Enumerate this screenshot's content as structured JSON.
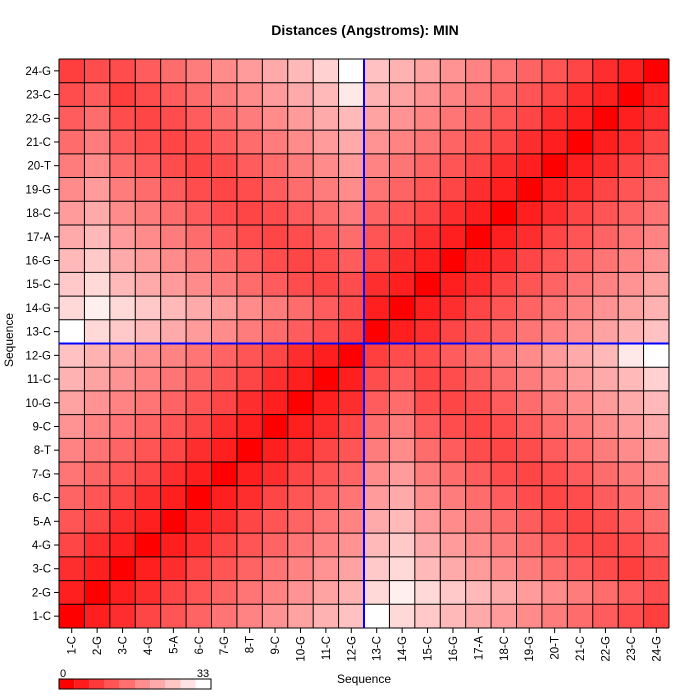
{
  "chart_data": {
    "type": "heatmap",
    "title": "Distances (Angstroms):  MIN",
    "xlabel": "Sequence",
    "ylabel": "Sequence",
    "labels": [
      "1-C",
      "2-G",
      "3-C",
      "4-G",
      "5-A",
      "6-C",
      "7-G",
      "8-T",
      "9-C",
      "10-G",
      "11-C",
      "12-G",
      "13-C",
      "14-G",
      "15-C",
      "16-G",
      "17-A",
      "18-C",
      "19-G",
      "20-T",
      "21-C",
      "22-G",
      "23-C",
      "24-G"
    ],
    "value_range": [
      0,
      33
    ],
    "color_scale": {
      "low": "#ff0000",
      "high": "#ffffff"
    },
    "legend": {
      "min_label": "0",
      "max_label": "33",
      "steps": 10
    },
    "crosshair": {
      "after_index": 12,
      "color": "#0000ff"
    },
    "matrix": [
      [
        0,
        4,
        6,
        9,
        11,
        13,
        15,
        17,
        19,
        21,
        23,
        25,
        33,
        28,
        26,
        24,
        22,
        20,
        18,
        16,
        14,
        12,
        10,
        8
      ],
      [
        4,
        0,
        4,
        6,
        9,
        11,
        13,
        15,
        17,
        19,
        21,
        23,
        28,
        31,
        28,
        26,
        24,
        22,
        20,
        18,
        16,
        14,
        12,
        10
      ],
      [
        6,
        4,
        0,
        4,
        6,
        9,
        11,
        13,
        15,
        17,
        19,
        21,
        26,
        28,
        24,
        22,
        20,
        18,
        16,
        14,
        12,
        10,
        8,
        10
      ],
      [
        9,
        6,
        4,
        0,
        4,
        6,
        9,
        11,
        13,
        15,
        17,
        19,
        24,
        26,
        22,
        20,
        18,
        16,
        14,
        12,
        10,
        9,
        10,
        12
      ],
      [
        11,
        9,
        6,
        4,
        0,
        4,
        6,
        9,
        11,
        13,
        15,
        17,
        22,
        24,
        20,
        18,
        16,
        14,
        12,
        10,
        9,
        10,
        12,
        14
      ],
      [
        13,
        11,
        9,
        6,
        4,
        0,
        4,
        6,
        9,
        11,
        13,
        15,
        20,
        22,
        18,
        16,
        14,
        12,
        10,
        9,
        10,
        12,
        14,
        16
      ],
      [
        15,
        13,
        11,
        9,
        6,
        4,
        0,
        4,
        6,
        9,
        11,
        13,
        18,
        20,
        16,
        14,
        12,
        10,
        9,
        10,
        12,
        14,
        16,
        18
      ],
      [
        17,
        15,
        13,
        11,
        9,
        6,
        4,
        0,
        4,
        6,
        9,
        11,
        16,
        18,
        14,
        12,
        10,
        9,
        10,
        12,
        14,
        16,
        18,
        20
      ],
      [
        19,
        17,
        15,
        13,
        11,
        9,
        6,
        4,
        0,
        4,
        6,
        9,
        14,
        16,
        12,
        10,
        9,
        10,
        12,
        14,
        16,
        18,
        20,
        22
      ],
      [
        21,
        19,
        17,
        15,
        13,
        11,
        9,
        6,
        4,
        0,
        4,
        6,
        12,
        14,
        10,
        9,
        10,
        12,
        14,
        16,
        18,
        20,
        22,
        24
      ],
      [
        23,
        21,
        19,
        17,
        15,
        13,
        11,
        9,
        6,
        4,
        0,
        4,
        10,
        12,
        9,
        10,
        12,
        14,
        16,
        18,
        20,
        22,
        24,
        27
      ],
      [
        25,
        23,
        21,
        19,
        17,
        15,
        13,
        11,
        9,
        6,
        4,
        0,
        8,
        10,
        10,
        12,
        14,
        16,
        18,
        20,
        22,
        24,
        30,
        33
      ],
      [
        33,
        28,
        26,
        24,
        22,
        20,
        18,
        16,
        14,
        12,
        10,
        8,
        0,
        4,
        6,
        9,
        11,
        13,
        15,
        17,
        19,
        21,
        23,
        25
      ],
      [
        28,
        31,
        28,
        26,
        24,
        22,
        20,
        18,
        16,
        14,
        12,
        10,
        4,
        0,
        4,
        6,
        9,
        11,
        13,
        15,
        17,
        19,
        21,
        23
      ],
      [
        26,
        28,
        24,
        22,
        20,
        18,
        16,
        14,
        12,
        10,
        9,
        10,
        6,
        4,
        0,
        4,
        6,
        9,
        11,
        13,
        15,
        17,
        19,
        21
      ],
      [
        24,
        26,
        22,
        20,
        18,
        16,
        14,
        12,
        10,
        9,
        10,
        12,
        9,
        6,
        4,
        0,
        4,
        6,
        9,
        11,
        13,
        15,
        17,
        19
      ],
      [
        22,
        24,
        20,
        18,
        16,
        14,
        12,
        10,
        9,
        10,
        12,
        14,
        11,
        9,
        6,
        4,
        0,
        4,
        6,
        9,
        11,
        13,
        15,
        17
      ],
      [
        20,
        22,
        18,
        16,
        14,
        12,
        10,
        9,
        10,
        12,
        14,
        16,
        13,
        11,
        9,
        6,
        4,
        0,
        4,
        6,
        9,
        11,
        13,
        15
      ],
      [
        18,
        20,
        16,
        14,
        12,
        10,
        9,
        10,
        12,
        14,
        16,
        18,
        15,
        13,
        11,
        9,
        6,
        4,
        0,
        4,
        6,
        9,
        11,
        13
      ],
      [
        16,
        18,
        14,
        12,
        10,
        9,
        10,
        12,
        14,
        16,
        18,
        20,
        17,
        15,
        13,
        11,
        9,
        6,
        4,
        0,
        4,
        6,
        9,
        11
      ],
      [
        14,
        16,
        12,
        10,
        9,
        10,
        12,
        14,
        16,
        18,
        20,
        22,
        19,
        17,
        15,
        13,
        11,
        9,
        6,
        4,
        0,
        4,
        6,
        9
      ],
      [
        12,
        14,
        10,
        9,
        10,
        12,
        14,
        16,
        18,
        20,
        22,
        24,
        21,
        19,
        17,
        15,
        13,
        11,
        9,
        6,
        4,
        0,
        4,
        6
      ],
      [
        10,
        12,
        8,
        10,
        12,
        14,
        16,
        18,
        20,
        22,
        24,
        30,
        23,
        21,
        19,
        17,
        15,
        13,
        11,
        9,
        6,
        4,
        0,
        4
      ],
      [
        8,
        10,
        10,
        12,
        14,
        16,
        18,
        20,
        22,
        24,
        27,
        33,
        25,
        23,
        21,
        19,
        17,
        15,
        13,
        11,
        9,
        6,
        4,
        0
      ]
    ]
  }
}
